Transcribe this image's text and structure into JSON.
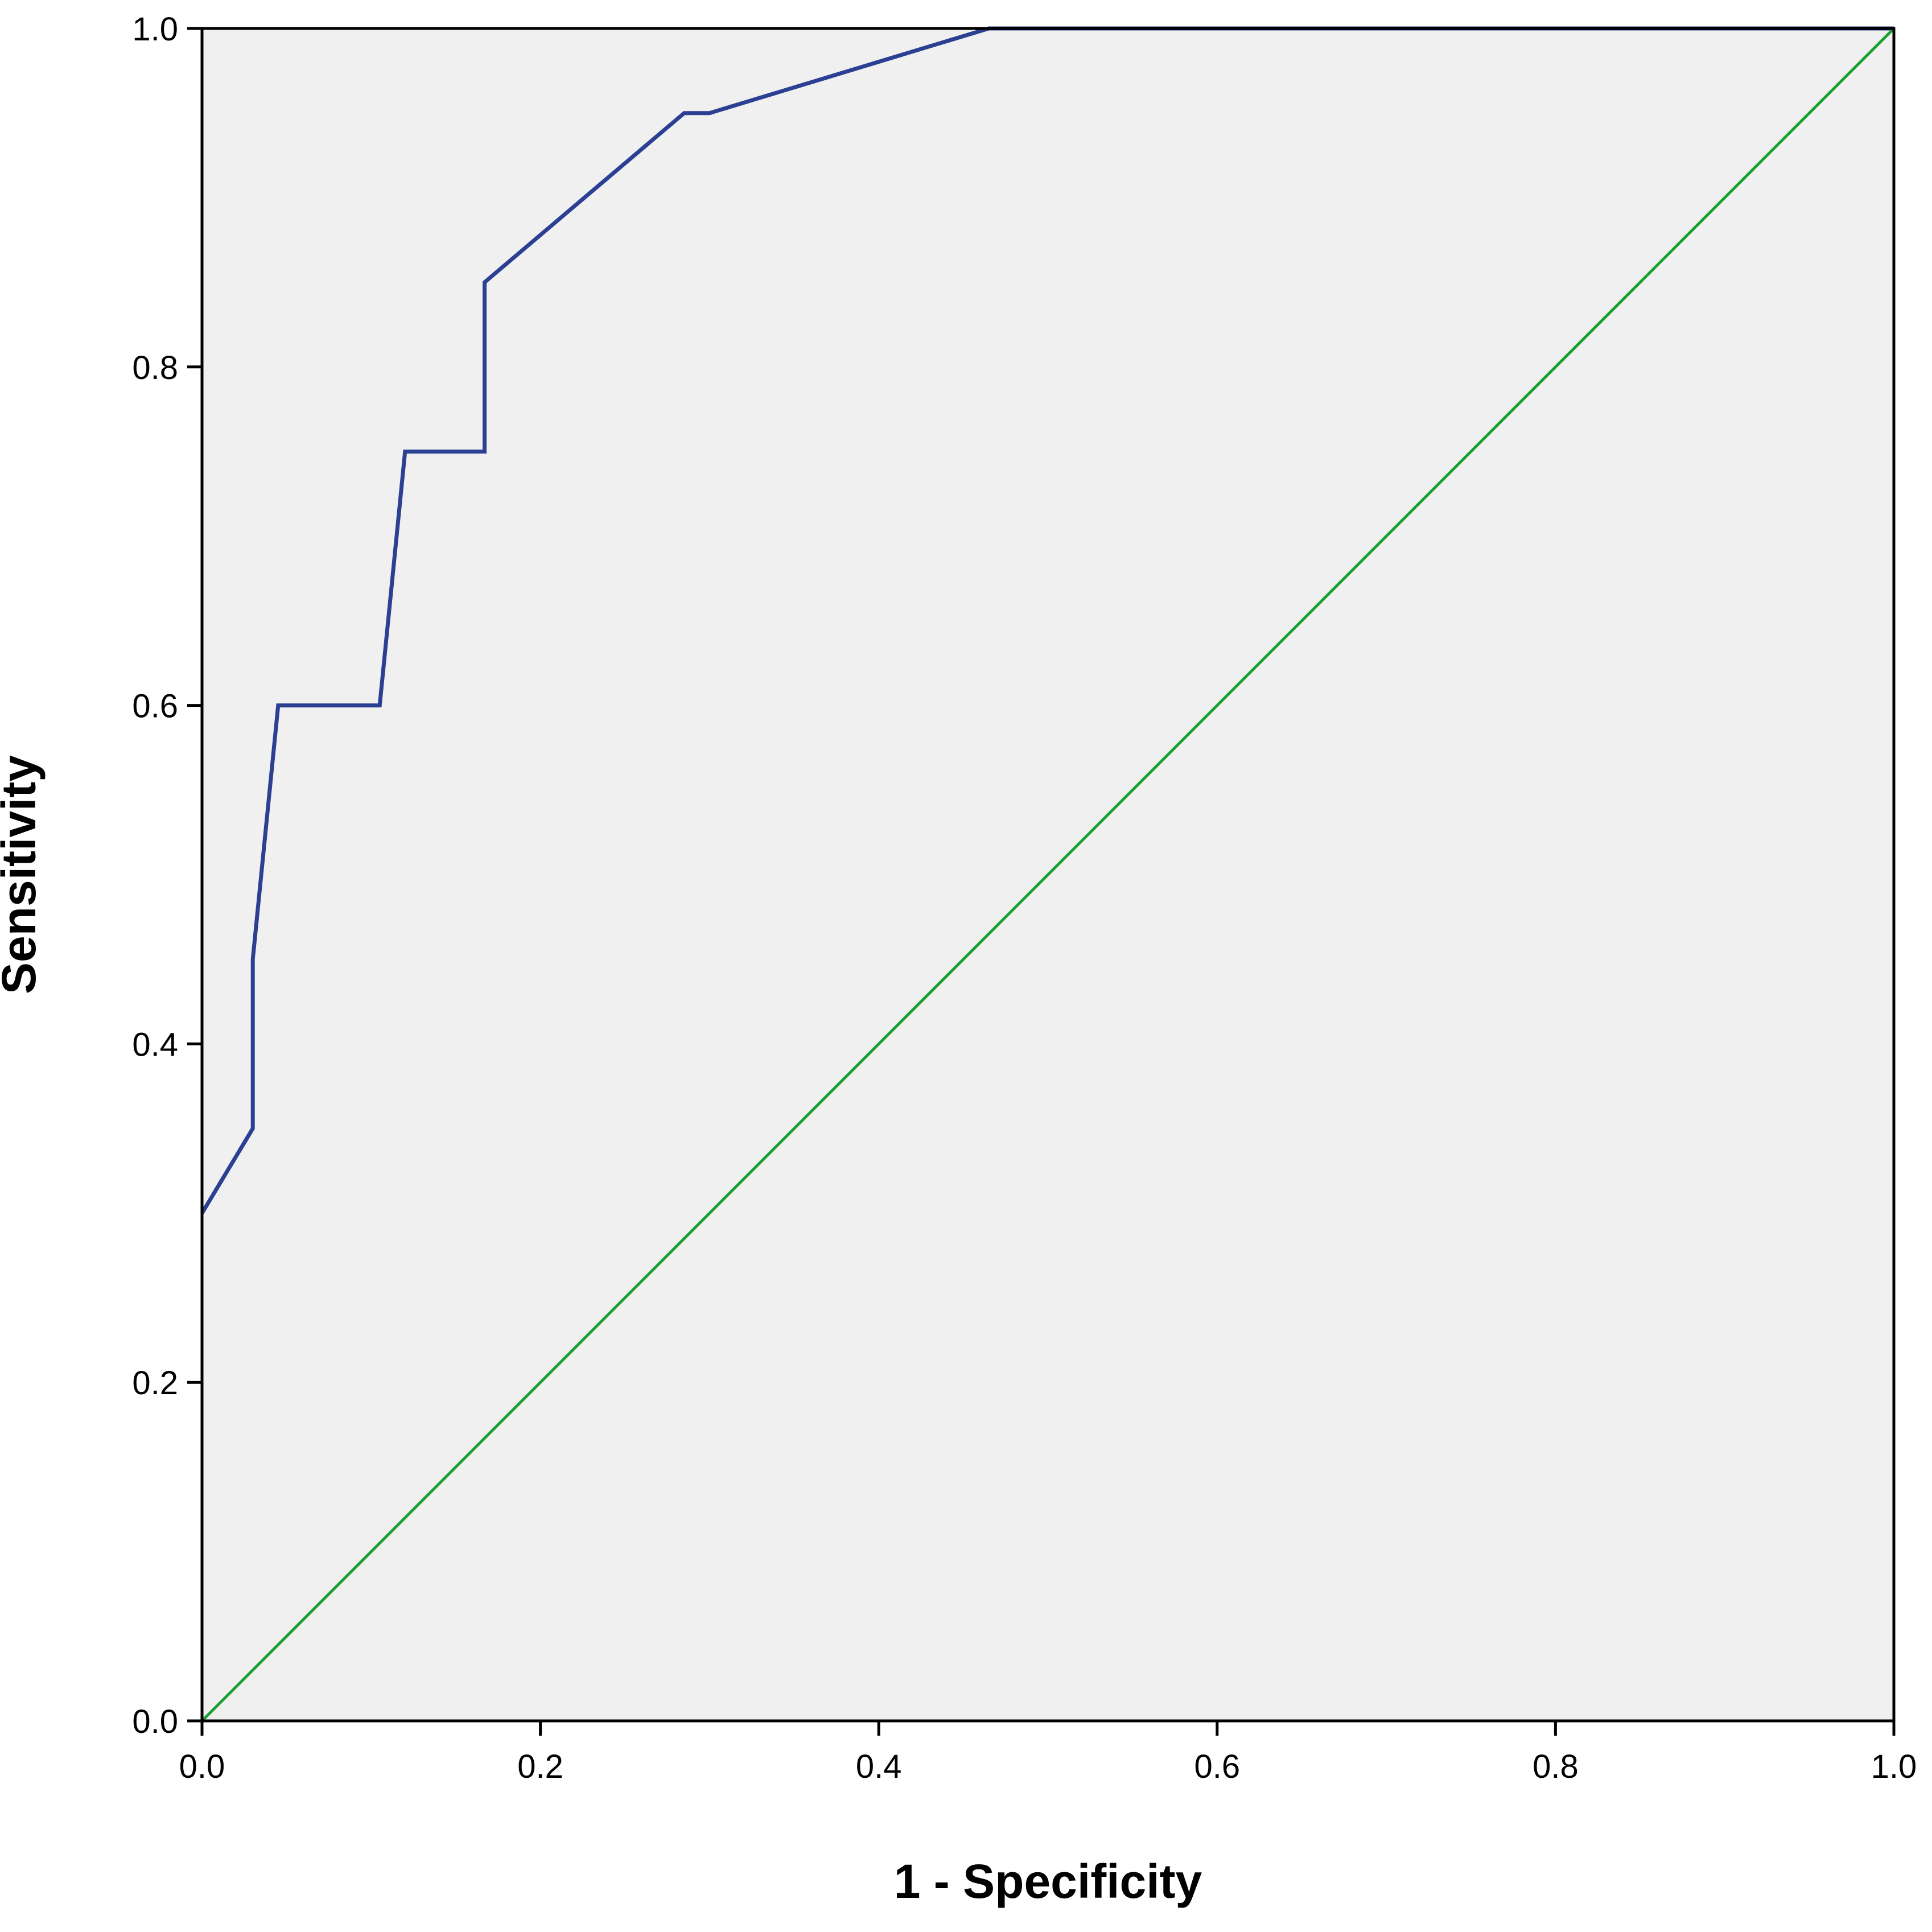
{
  "chart_data": {
    "type": "line",
    "title": "",
    "xlabel": "1 - Specificity",
    "ylabel": "Sensitivity",
    "xlim": [
      0,
      1
    ],
    "ylim": [
      0,
      1
    ],
    "xticks": [
      "0.0",
      "0.2",
      "0.4",
      "0.6",
      "0.8",
      "1.0"
    ],
    "yticks": [
      "0.0",
      "0.2",
      "0.4",
      "0.6",
      "0.8",
      "1.0"
    ],
    "grid": false,
    "legend": "none",
    "background_color": "#f0f0f0",
    "series": [
      {
        "color": "#2b3f93",
        "x": [
          0.0,
          0.03,
          0.03,
          0.045,
          0.105,
          0.12,
          0.165,
          0.167,
          0.167,
          0.285,
          0.3,
          0.465,
          1.0
        ],
        "y": [
          0.3,
          0.35,
          0.45,
          0.6,
          0.6,
          0.75,
          0.75,
          0.75,
          0.85,
          0.95,
          0.95,
          1.0,
          1.0
        ]
      },
      {
        "color": "#1aa032",
        "x": [
          0.0,
          1.0
        ],
        "y": [
          0.0,
          1.0
        ]
      }
    ]
  }
}
